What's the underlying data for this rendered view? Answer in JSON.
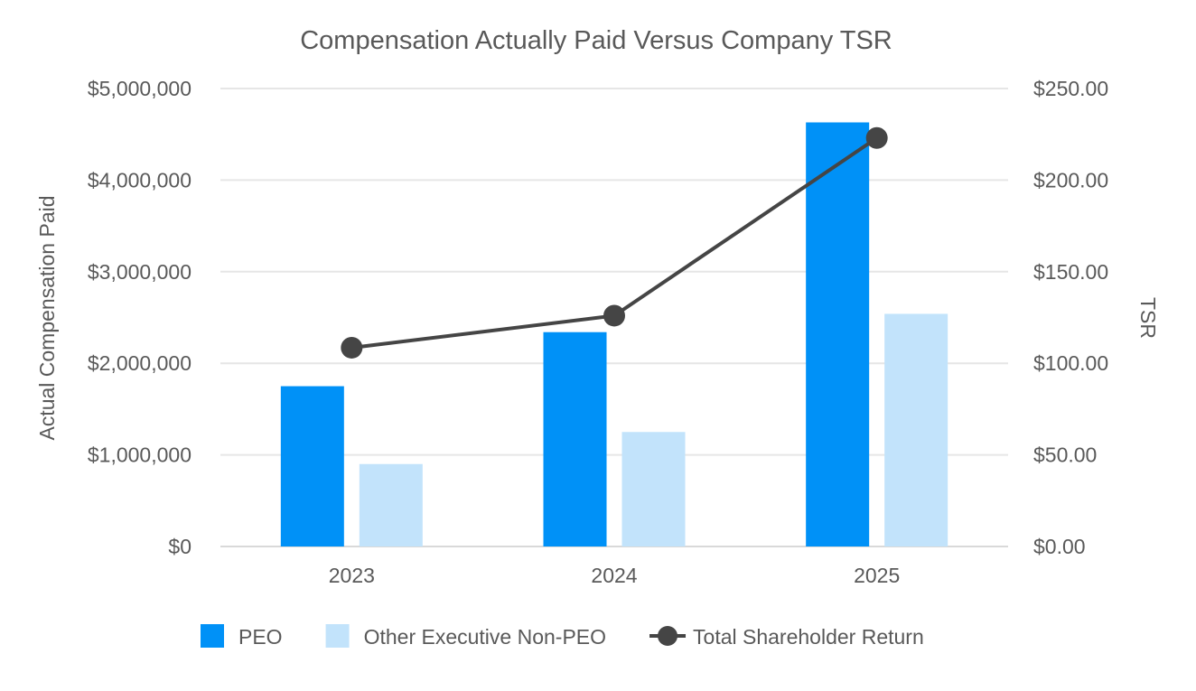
{
  "chart_data": {
    "type": "bar",
    "title": "Compensation Actually Paid Versus Company TSR",
    "categories": [
      "2023",
      "2024",
      "2025"
    ],
    "y_left": {
      "label": "Actual Compensation Paid",
      "range": [
        0,
        5000000
      ],
      "ticks": [
        "$0",
        "$1,000,000",
        "$2,000,000",
        "$3,000,000",
        "$4,000,000",
        "$5,000,000"
      ],
      "tick_values": [
        0,
        1000000,
        2000000,
        3000000,
        4000000,
        5000000
      ]
    },
    "y_right": {
      "label": "TSR",
      "range": [
        0,
        250
      ],
      "ticks": [
        "$0.00",
        "$50.00",
        "$100.00",
        "$150.00",
        "$200.00",
        "$250.00"
      ],
      "tick_values": [
        0,
        50,
        100,
        150,
        200,
        250
      ]
    },
    "series": [
      {
        "name": "PEO",
        "kind": "bar",
        "axis": "left",
        "color": "#0091f7",
        "values": [
          1750000,
          2340000,
          4630000
        ]
      },
      {
        "name": "Other Executive Non-PEO",
        "kind": "bar",
        "axis": "left",
        "color": "#c2e3fb",
        "values": [
          900000,
          1250000,
          2540000
        ]
      },
      {
        "name": "Total Shareholder Return",
        "kind": "line",
        "axis": "right",
        "color": "#454545",
        "values": [
          108.5,
          126,
          223
        ]
      }
    ],
    "grid": true,
    "legend_position": "bottom"
  }
}
